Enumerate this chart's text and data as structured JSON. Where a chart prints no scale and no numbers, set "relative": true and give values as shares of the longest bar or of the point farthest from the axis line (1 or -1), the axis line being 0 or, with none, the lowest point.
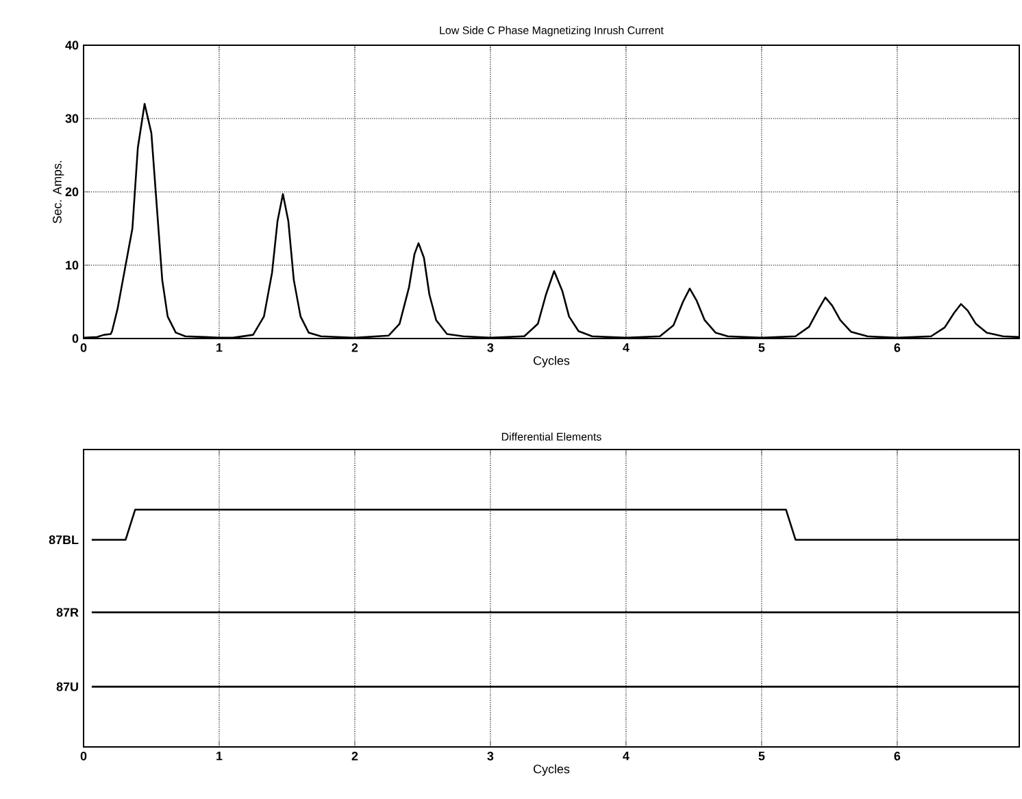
{
  "chart_data": [
    {
      "type": "line",
      "title": "Low Side C Phase Magnetizing Inrush Current",
      "xlabel": "Cycles",
      "ylabel": "Sec. Amps.",
      "xlim": [
        0,
        6.9
      ],
      "ylim": [
        0,
        40
      ],
      "xticks": [
        0,
        1,
        2,
        3,
        4,
        5,
        6
      ],
      "yticks": [
        0,
        10,
        20,
        30,
        40
      ],
      "grid": true,
      "line_style": "solid",
      "marker": "none",
      "series": [
        {
          "color": "#000000",
          "x": [
            0,
            0.1,
            0.15,
            0.2,
            0.21,
            0.25,
            0.29,
            0.33,
            0.36,
            0.4,
            0.45,
            0.5,
            0.54,
            0.58,
            0.62,
            0.68,
            0.75,
            0.9,
            1.0,
            1.1,
            1.25,
            1.33,
            1.39,
            1.43,
            1.47,
            1.51,
            1.55,
            1.6,
            1.66,
            1.75,
            2.0,
            2.25,
            2.33,
            2.4,
            2.44,
            2.47,
            2.51,
            2.55,
            2.6,
            2.68,
            2.8,
            3.0,
            3.25,
            3.35,
            3.41,
            3.47,
            3.53,
            3.58,
            3.65,
            3.75,
            4.0,
            4.25,
            4.35,
            4.42,
            4.47,
            4.52,
            4.58,
            4.66,
            4.75,
            5.0,
            5.25,
            5.35,
            5.42,
            5.47,
            5.52,
            5.58,
            5.66,
            5.78,
            6.0,
            6.25,
            6.35,
            6.42,
            6.47,
            6.52,
            6.58,
            6.66,
            6.78,
            6.9
          ],
          "values": [
            0.1,
            0.2,
            0.5,
            0.6,
            1,
            4,
            8,
            12,
            15,
            26,
            32,
            28,
            18,
            8,
            3,
            0.8,
            0.3,
            0.2,
            0.1,
            0.1,
            0.5,
            3,
            9,
            16,
            19.7,
            16,
            8,
            3,
            0.8,
            0.3,
            0.1,
            0.4,
            2,
            7,
            11.5,
            13,
            11,
            6,
            2.5,
            0.6,
            0.3,
            0.1,
            0.3,
            2,
            6,
            9.2,
            6.5,
            3,
            1,
            0.3,
            0.1,
            0.3,
            1.8,
            5,
            6.8,
            5.2,
            2.5,
            0.8,
            0.3,
            0.1,
            0.3,
            1.6,
            4,
            5.6,
            4.5,
            2.5,
            0.9,
            0.3,
            0.1,
            0.3,
            1.5,
            3.5,
            4.7,
            3.8,
            2,
            0.8,
            0.3,
            0.2
          ]
        }
      ]
    },
    {
      "type": "line",
      "title": "Differential Elements",
      "xlabel": "Cycles",
      "xlim": [
        0,
        6.9
      ],
      "xticks": [
        0,
        1,
        2,
        3,
        4,
        5,
        6
      ],
      "relative": true,
      "grid": "x",
      "line_style": "solid",
      "marker": "none",
      "series": [
        {
          "name": "87BL",
          "color": "#000000",
          "x": [
            0.06,
            0.31,
            0.38,
            5.18,
            5.25,
            6.9
          ],
          "values": [
            0.83,
            0.83,
            1,
            1,
            0.83,
            0.83
          ]
        },
        {
          "name": "87R",
          "color": "#000000",
          "x": [
            0.06,
            6.9
          ],
          "values": [
            0.42,
            0.42
          ]
        },
        {
          "name": "87U",
          "color": "#000000",
          "x": [
            0.06,
            6.9
          ],
          "values": [
            0,
            0
          ]
        }
      ]
    }
  ]
}
